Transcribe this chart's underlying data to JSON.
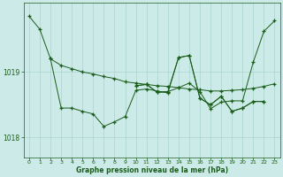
{
  "title": "Graphe pression niveau de la mer (hPa)",
  "bg_color": "#cceae7",
  "grid_color": "#aad4d0",
  "line_color": "#1a5c1a",
  "xlim": [
    -0.5,
    23.5
  ],
  "ylim": [
    1017.7,
    1020.05
  ],
  "yticks": [
    1018,
    1019
  ],
  "xticks": [
    0,
    1,
    2,
    3,
    4,
    5,
    6,
    7,
    8,
    9,
    10,
    11,
    12,
    13,
    14,
    15,
    16,
    17,
    18,
    19,
    20,
    21,
    22,
    23
  ],
  "series": [
    [
      1019.85,
      1019.65,
      1019.2,
      1019.1,
      1019.05,
      1019.0,
      1018.97,
      1018.93,
      1018.9,
      1018.85,
      1018.83,
      1018.81,
      1018.79,
      1018.78,
      1018.76,
      1018.74,
      1018.73,
      1018.71,
      1018.71,
      1018.72,
      1018.73,
      1018.75,
      1018.78,
      1018.82
    ],
    [
      null,
      null,
      1019.2,
      1018.45,
      1018.45,
      1018.4,
      1018.36,
      1018.17,
      1018.24,
      1018.32,
      1018.72,
      1018.74,
      1018.71,
      1018.68,
      1019.22,
      1019.25,
      1018.6,
      1018.5,
      1018.63,
      1018.4,
      1018.45,
      1018.55,
      1018.55,
      null
    ],
    [
      null,
      null,
      null,
      null,
      null,
      null,
      null,
      null,
      null,
      null,
      1018.79,
      1018.81,
      1018.69,
      1018.7,
      1018.76,
      1018.83,
      1018.7,
      1018.44,
      1018.54,
      1018.56,
      1018.56,
      1019.15,
      1019.62,
      1019.78
    ],
    [
      null,
      null,
      null,
      null,
      null,
      null,
      null,
      null,
      null,
      null,
      1018.79,
      1018.81,
      1018.69,
      1018.7,
      1019.22,
      1019.25,
      1018.6,
      1018.5,
      1018.63,
      1018.4,
      1018.45,
      1018.55,
      1018.55,
      null
    ]
  ]
}
